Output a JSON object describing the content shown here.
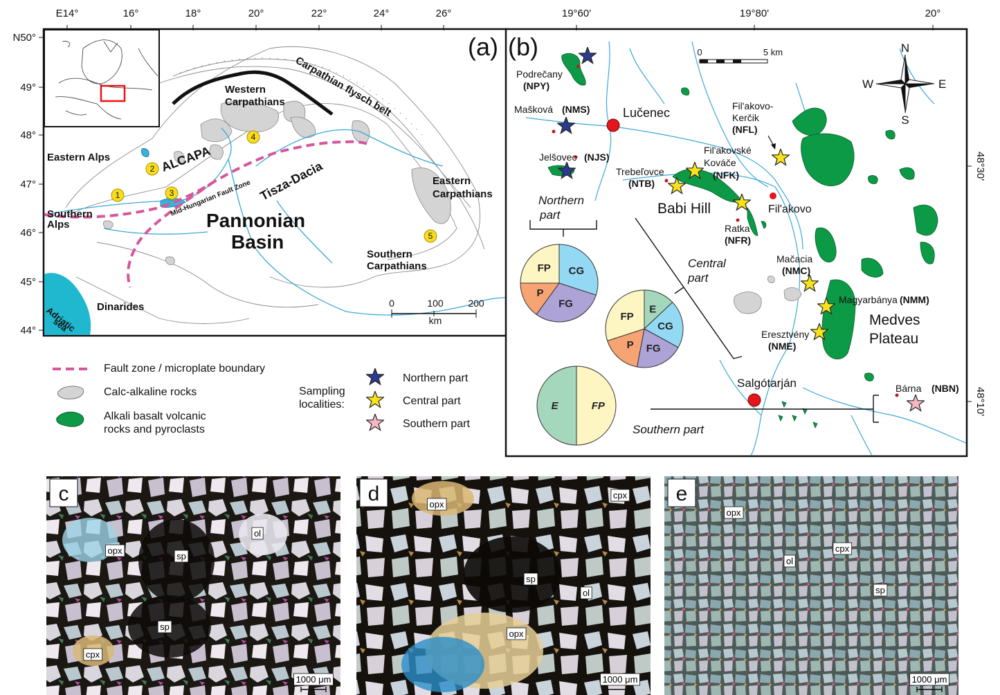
{
  "panel_a": {
    "letter": "(a)",
    "lon_ticks": [
      "E14°",
      "16°",
      "18°",
      "20°",
      "22°",
      "24°",
      "26°"
    ],
    "lat_ticks": [
      "N50°",
      "49°",
      "48°",
      "47°",
      "46°",
      "45°",
      "44°"
    ],
    "region_labels": {
      "eastern_alps": "Eastern Alps",
      "alcapa": "ALCAPA",
      "southern_alps_1": "Southern",
      "southern_alps_2": "Alps",
      "western_carp_1": "Western",
      "western_carp_2": "Carpathians",
      "flysch": "Carpathian flysch belt",
      "tisza": "Tisza-Dacia",
      "pannonian_1": "Pannonian",
      "pannonian_2": "Basin",
      "mhfz": "Mid-Hungarian Fault Zone",
      "eastern_carp_1": "Eastern",
      "eastern_carp_2": "Carpathians",
      "southern_carp_1": "Southern",
      "southern_carp_2": "Carpathians",
      "dinarides": "Dinarides",
      "adriatic_1": "Adriatic",
      "adriatic_2": "sea"
    },
    "numbered_sites": [
      "1",
      "2",
      "3",
      "4",
      "5"
    ],
    "scale": {
      "labels": [
        "0",
        "100",
        "200"
      ],
      "unit": "km"
    }
  },
  "legend": {
    "fault": "Fault zone / microplate boundary",
    "calc": "Calc-alkaline rocks",
    "alkali_1": "Alkali basalt volcanic",
    "alkali_2": "rocks and pyroclasts",
    "sampling_1": "Sampling",
    "sampling_2": "localities:",
    "northern": "Northern part",
    "central": "Central part",
    "southern": "Southern part",
    "colors": {
      "fault": "#d6559c",
      "calc": "#d4d4d4",
      "alkali": "#0c9a47",
      "northern_star": "#2b3a8c",
      "central_star": "#f7e21b",
      "southern_star": "#f4b8c4",
      "river": "#38a8d8"
    }
  },
  "panel_b": {
    "letter": "(b)",
    "lon_ticks": [
      "19°60'",
      "19°80'",
      "20°"
    ],
    "lat_ticks": [
      "48°30'",
      "48°10'"
    ],
    "scale": {
      "zero": "0",
      "end": "5 km"
    },
    "compass": {
      "n": "N",
      "s": "S",
      "e": "E",
      "w": "W"
    },
    "localities": {
      "podrecany": "Podrečany",
      "npy": "(NPY)",
      "maskova": "Mašková",
      "nms": "(NMS)",
      "jelsovec": "Jelšovec",
      "njs": "(NJS)",
      "lucenec": "Lučenec",
      "trebelovce": "Trebeľovce",
      "ntb": "(NTB)",
      "filakovo_kercik_1": "Fil'akovo-",
      "filakovo_kercik_2": "Kerčik",
      "nfl": "(NFL)",
      "filakovske_1": "Fil'akovské",
      "filakovske_2": "Kováče",
      "nfk": "(NFK)",
      "babi_hill": "Babi Hill",
      "filakovo": "Fil'akovo",
      "ratka": "Ratka",
      "nfr": "(NFR)",
      "macacia": "Mačacia",
      "nmc": "(NMC)",
      "magyarbanya": "Magyarbánya",
      "nmm": "(NMM)",
      "eresztveny": "Eresztvény",
      "nme": "(NME)",
      "medves_1": "Medves",
      "medves_2": "Plateau",
      "salgotarjan": "Salgótarján",
      "barna": "Bárna",
      "nbn": "(NBN)"
    },
    "part_labels": {
      "northern_1": "Northern",
      "northern_2": "part",
      "central_1": "Central",
      "central_2": "part",
      "southern": "Southern part"
    },
    "pies": {
      "northern": [
        {
          "label": "FP",
          "color": "#fdf5c2"
        },
        {
          "label": "CG",
          "color": "#93d9f3"
        },
        {
          "label": "FG",
          "color": "#ada3d6"
        },
        {
          "label": "P",
          "color": "#f6a473"
        }
      ],
      "central": [
        {
          "label": "E",
          "color": "#a5d7bd"
        },
        {
          "label": "CG",
          "color": "#93d9f3"
        },
        {
          "label": "FG",
          "color": "#ada3d6"
        },
        {
          "label": "P",
          "color": "#f6a473"
        },
        {
          "label": "FP",
          "color": "#fdf5c2"
        }
      ],
      "southern": [
        {
          "label": "E",
          "color": "#a5d7bd"
        },
        {
          "label": "FP",
          "color": "#fdf5c2"
        }
      ]
    }
  },
  "photos": [
    {
      "letter": "c",
      "scale": "1000 μm",
      "minerals": [
        "opx",
        "sp",
        "ol",
        "sp",
        "cpx"
      ]
    },
    {
      "letter": "d",
      "scale": "1000 μm",
      "minerals": [
        "opx",
        "cpx",
        "sp",
        "ol",
        "opx"
      ]
    },
    {
      "letter": "e",
      "scale": "1000 μm",
      "minerals": [
        "opx",
        "ol",
        "cpx",
        "sp"
      ]
    }
  ]
}
